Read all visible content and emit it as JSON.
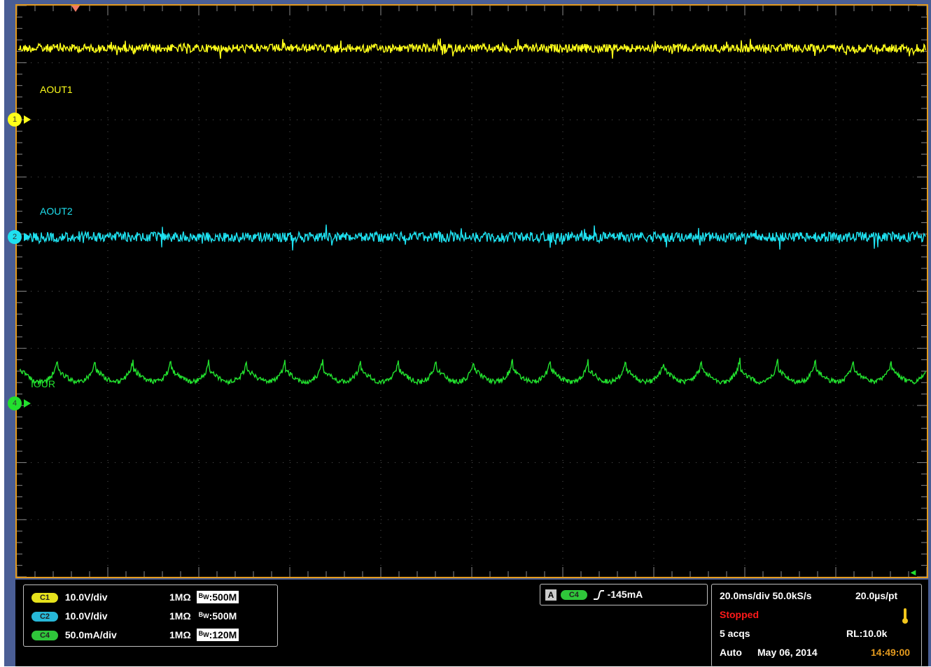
{
  "colors": {
    "ch1": "#ffff1a",
    "ch2": "#1ee1f0",
    "ch4": "#22e02e",
    "frame": "#4a5e95",
    "border": "#e39a1e",
    "stopped": "#ff1a1a",
    "time": "#e39a1e"
  },
  "screen": {
    "waveforms": [
      {
        "name": "AOUT1",
        "marker": "1",
        "shape": "flat-noise"
      },
      {
        "name": "AOUT2",
        "marker": "2",
        "shape": "flat-noise"
      },
      {
        "name": "IOUR",
        "marker": "4",
        "shape": "periodic-ripple",
        "cycles": 24
      }
    ],
    "grid": {
      "h_divisions": 10,
      "v_divisions": 10
    }
  },
  "channels": [
    {
      "badge": "C1",
      "scale": "10.0V/div",
      "impedance": "1MΩ",
      "bw_prefix": "B",
      "bw_sub": "W",
      "bandwidth": ":500M",
      "boxed": true
    },
    {
      "badge": "C2",
      "scale": "10.0V/div",
      "impedance": "1MΩ",
      "bw_prefix": "B",
      "bw_sub": "W",
      "bandwidth": ":500M",
      "boxed": false
    },
    {
      "badge": "C4",
      "scale": "50.0mA/div",
      "impedance": "1MΩ",
      "bw_prefix": "B",
      "bw_sub": "W",
      "bandwidth": ":120M",
      "boxed": true
    }
  ],
  "trigger": {
    "mode_badge": "A",
    "source_badge": "C4",
    "slope_icon": "rising-edge-icon",
    "level": "-145mA"
  },
  "acquisition": {
    "timebase": "20.0ms/div 50.0kS/s",
    "resolution": "20.0µs/pt",
    "state": "Stopped",
    "acqs": "5 acqs",
    "record_length": "RL:10.0k",
    "trigger_mode": "Auto",
    "date": "May 06, 2014",
    "time": "14:49:00"
  }
}
